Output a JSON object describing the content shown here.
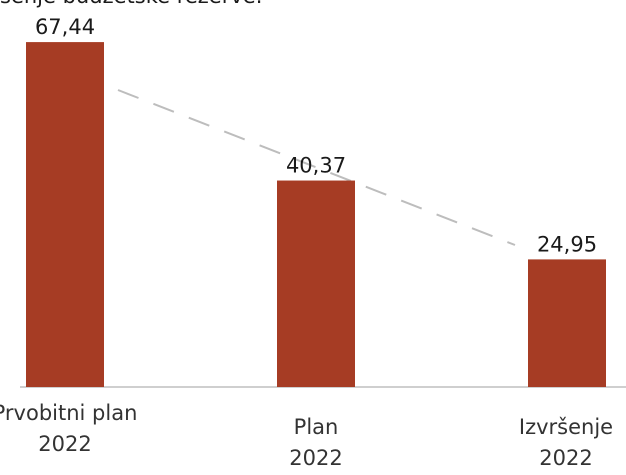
{
  "chart_data": {
    "type": "bar",
    "title": "šenje budžetske rezerve.",
    "categories": [
      "Prvobitni plan 2022",
      "Plan 2022",
      "Izvršenje 2022"
    ],
    "values": [
      67.44,
      40.37,
      24.95
    ],
    "value_labels": [
      "67,44",
      "40,37",
      "24,95"
    ],
    "color": "#a63c24",
    "ylim": [
      0,
      70
    ]
  }
}
